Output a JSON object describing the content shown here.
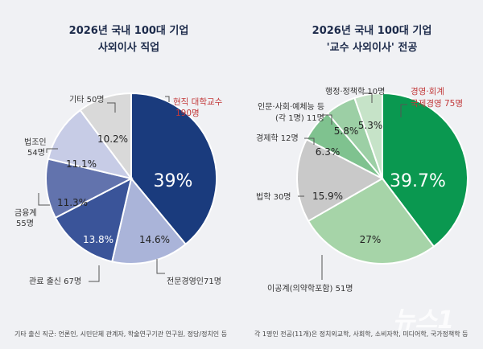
{
  "charts": [
    {
      "title_line1": "2026년 국내 100대 기업",
      "title_line2": "사외이사 직업",
      "footnote": "기타 출신 직군: 언론인, 시민단체 관계자, 학술연구기관 연구원, 정당/정치인 등",
      "slices": [
        {
          "label": "현직 대학교수",
          "label_extra": "190명",
          "pct": "39%",
          "value": 39,
          "color": "#1a3b7d",
          "label_color": "#c2393a"
        },
        {
          "label": "전문경영인71명",
          "label_extra": "",
          "pct": "14.6%",
          "value": 14.6,
          "color": "#aab4d9",
          "label_color": "#333333"
        },
        {
          "label": "관료 출신 67명",
          "label_extra": "",
          "pct": "13.8%",
          "value": 13.8,
          "color": "#3a5499",
          "label_color": "#333333"
        },
        {
          "label": "금융계",
          "label_extra": "55명",
          "pct": "11.3%",
          "value": 11.3,
          "color": "#6273ad",
          "label_color": "#333333"
        },
        {
          "label": "법조인",
          "label_extra": "54명",
          "pct": "11.1%",
          "value": 11.1,
          "color": "#c7cce6",
          "label_color": "#333333"
        },
        {
          "label": "기타 50명",
          "label_extra": "",
          "pct": "10.2%",
          "value": 10.2,
          "color": "#d9d9d9",
          "label_color": "#333333"
        }
      ]
    },
    {
      "title_line1": "2026년 국내 100대 기업",
      "title_line2": "'교수 사외이사' 전공",
      "footnote": "각 1명인 전공(11개)은 정치외교학, 사회학, 소비자학, 미디어학, 국가정책학 등",
      "slices": [
        {
          "label": "경영·회계",
          "label_extra": "국제경영 75명",
          "pct": "39.7%",
          "value": 39.7,
          "color": "#0a9850",
          "label_color": "#c2393a"
        },
        {
          "label": "이공계(의약학포함) 51명",
          "label_extra": "",
          "pct": "27%",
          "value": 27,
          "color": "#a6d4a8",
          "label_color": "#333333"
        },
        {
          "label": "법학 30명",
          "label_extra": "",
          "pct": "15.9%",
          "value": 15.9,
          "color": "#c9c9c9",
          "label_color": "#333333"
        },
        {
          "label": "경제학 12명",
          "label_extra": "",
          "pct": "6.3%",
          "value": 6.3,
          "color": "#7fc28f",
          "label_color": "#333333"
        },
        {
          "label": "인문·사회·예체능 등",
          "label_extra": "(각 1명) 11명",
          "pct": "5.8%",
          "value": 5.8,
          "color": "#9ccfa5",
          "label_color": "#333333"
        },
        {
          "label": "행정·정책학 10명",
          "label_extra": "",
          "pct": "5.3%",
          "value": 5.3,
          "color": "#c6e3c8",
          "label_color": "#333333"
        }
      ]
    }
  ],
  "chart_data": [
    {
      "type": "pie",
      "title": "2026년 국내 100대 기업 사외이사 직업",
      "categories": [
        "현직 대학교수",
        "전문경영인",
        "관료 출신",
        "금융계",
        "법조인",
        "기타"
      ],
      "values": [
        39,
        14.6,
        13.8,
        11.3,
        11.1,
        10.2
      ],
      "counts": [
        190,
        71,
        67,
        55,
        54,
        50
      ]
    },
    {
      "type": "pie",
      "title": "2026년 국내 100대 기업 '교수 사외이사' 전공",
      "categories": [
        "경영·회계 국제경영",
        "이공계(의약학포함)",
        "법학",
        "경제학",
        "인문·사회·예체능 등",
        "행정·정책학"
      ],
      "values": [
        39.7,
        27,
        15.9,
        6.3,
        5.8,
        5.3
      ],
      "counts": [
        75,
        51,
        30,
        12,
        11,
        10
      ]
    }
  ],
  "watermark": "뉴스1"
}
